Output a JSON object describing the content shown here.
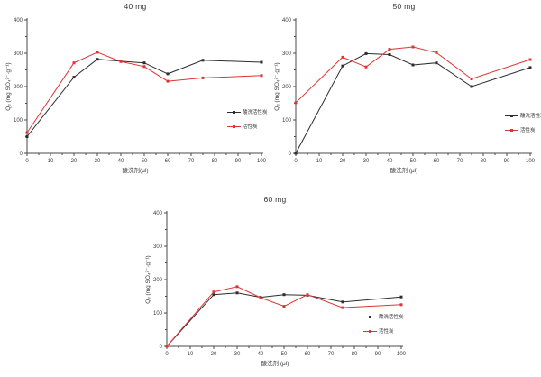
{
  "figure": {
    "background": "#ffffff",
    "axis_color": "#4a4a4a"
  },
  "chart_data": [
    {
      "type": "line",
      "title": "40 mg",
      "xlabel": "酸洗剂(μl)",
      "ylabel": "Qₑ (mg SO₄²⁻·g⁻¹)",
      "xlim": [
        0,
        100
      ],
      "ylim": [
        0,
        400
      ],
      "xticks": [
        0,
        10,
        20,
        30,
        40,
        50,
        60,
        70,
        80,
        90,
        100
      ],
      "yticks": [
        0,
        100,
        200,
        300,
        400
      ],
      "grid": false,
      "legend_position": "inside-right",
      "x": [
        0,
        20,
        30,
        40,
        50,
        60,
        75,
        100
      ],
      "series": [
        {
          "name": "酸洗活性炭",
          "color": "#2d2d2d",
          "marker": "square",
          "values": [
            50,
            228,
            282,
            276,
            271,
            238,
            279,
            273
          ]
        },
        {
          "name": "活性炭",
          "color": "#e03333",
          "marker": "square",
          "values": [
            62,
            271,
            303,
            275,
            260,
            216,
            226,
            233
          ]
        }
      ]
    },
    {
      "type": "line",
      "title": "50 mg",
      "xlabel": "酸洗剂 (μl)",
      "ylabel": "Qₑ (mg SO₄²⁻·g⁻¹)",
      "xlim": [
        0,
        100
      ],
      "ylim": [
        0,
        400
      ],
      "xticks": [
        0,
        10,
        20,
        30,
        40,
        50,
        60,
        70,
        80,
        90,
        100
      ],
      "yticks": [
        0,
        100,
        200,
        300,
        400
      ],
      "grid": false,
      "legend_position": "inside-right",
      "x": [
        0,
        20,
        30,
        40,
        50,
        60,
        75,
        100
      ],
      "series": [
        {
          "name": "酸洗活性炭",
          "color": "#2d2d2d",
          "marker": "square",
          "values": [
            0,
            262,
            299,
            296,
            265,
            271,
            200,
            257
          ]
        },
        {
          "name": "活性炭",
          "color": "#e03333",
          "marker": "square",
          "values": [
            152,
            288,
            259,
            312,
            319,
            302,
            223,
            281
          ]
        }
      ]
    },
    {
      "type": "line",
      "title": "60 mg",
      "xlabel": "酸洗剂 (μl)",
      "ylabel": "Qₑ (mg SO₄²⁻·g⁻¹)",
      "xlim": [
        0,
        100
      ],
      "ylim": [
        0,
        400
      ],
      "xticks": [
        0,
        10,
        20,
        30,
        40,
        50,
        60,
        70,
        80,
        90,
        100
      ],
      "yticks": [
        0,
        100,
        200,
        300,
        400
      ],
      "grid": false,
      "legend_position": "inside-right",
      "x": [
        0,
        20,
        30,
        40,
        50,
        60,
        75,
        100
      ],
      "series": [
        {
          "name": "酸洗活性炭",
          "color": "#2d2d2d",
          "marker": "square",
          "values": [
            0,
            155,
            160,
            147,
            155,
            153,
            133,
            148
          ]
        },
        {
          "name": "活性炭",
          "color": "#e03333",
          "marker": "square",
          "values": [
            0,
            163,
            179,
            146,
            120,
            155,
            116,
            125
          ]
        }
      ]
    }
  ]
}
